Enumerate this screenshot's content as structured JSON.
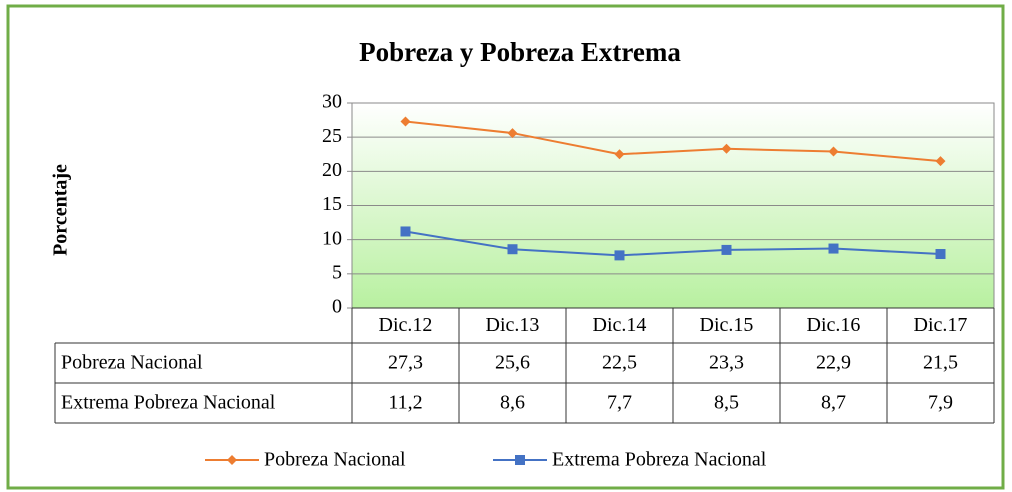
{
  "chart_data": {
    "type": "line",
    "title": "Pobreza y Pobreza Extrema",
    "y_label": "Porcentaje",
    "categories": [
      "Dic.12",
      "Dic.13",
      "Dic.14",
      "Dic.15",
      "Dic.16",
      "Dic.17"
    ],
    "series": [
      {
        "name": "Pobreza Nacional",
        "color": "#ed7d31",
        "marker": "diamond",
        "values": [
          27.3,
          25.6,
          22.5,
          23.3,
          22.9,
          21.5
        ],
        "value_labels": [
          "27,3",
          "25,6",
          "22,5",
          "23,3",
          "22,9",
          "21,5"
        ]
      },
      {
        "name": "Extrema Pobreza Nacional",
        "color": "#4472c4",
        "marker": "square",
        "values": [
          11.2,
          8.6,
          7.7,
          8.5,
          8.7,
          7.9
        ],
        "value_labels": [
          "11,2",
          "8,6",
          "7,7",
          "8,5",
          "8,7",
          "7,9"
        ]
      }
    ],
    "ylim": [
      0,
      30
    ],
    "yticks": [
      0,
      5,
      10,
      15,
      20,
      25,
      30
    ],
    "grid": true,
    "legend": "bottom"
  }
}
